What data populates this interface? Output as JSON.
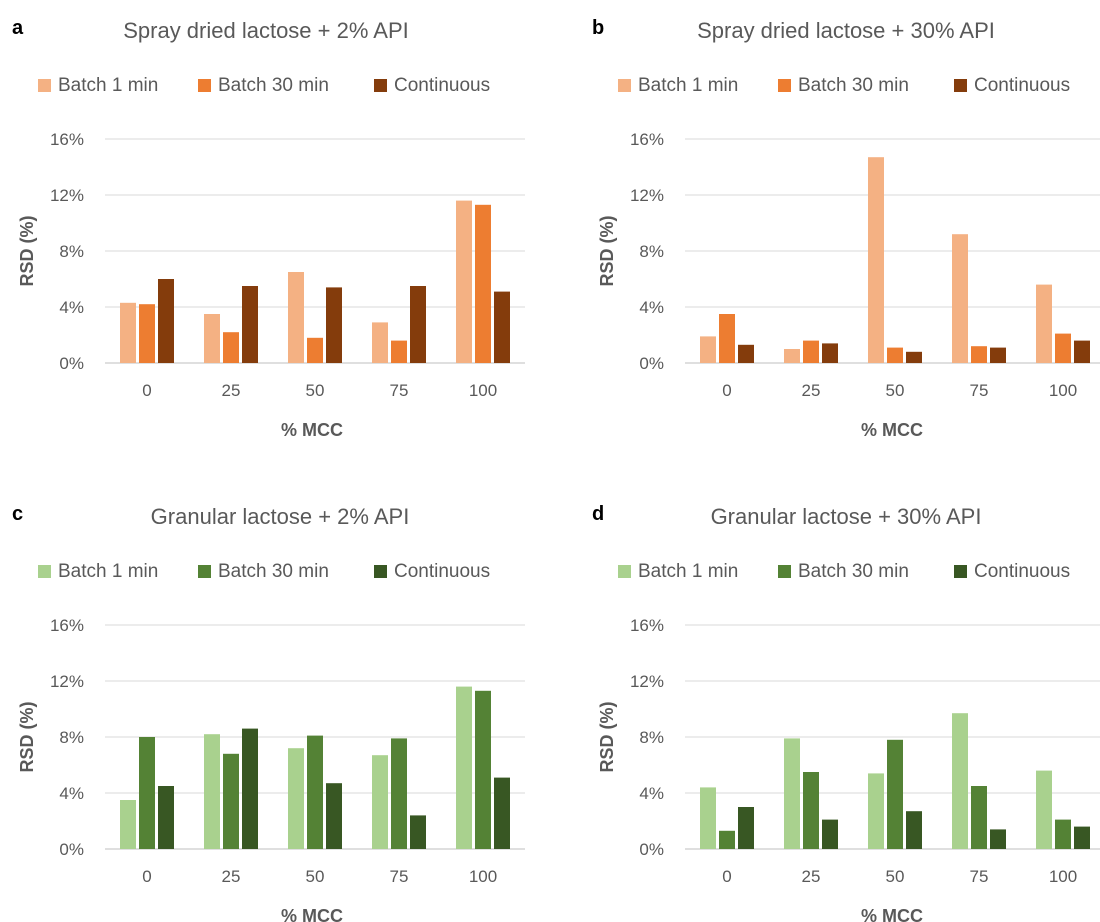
{
  "chart_data": [
    {
      "type": "bar",
      "panel_letter": "a",
      "title": "Spray dried lactose + 2% API",
      "xlabel": "% MCC",
      "ylabel": "RSD (%)",
      "categories": [
        "0",
        "25",
        "50",
        "75",
        "100"
      ],
      "ylim": [
        0,
        16
      ],
      "yticks": [
        "0%",
        "4%",
        "8%",
        "12%",
        "16%"
      ],
      "grid": true,
      "legend_position": "top",
      "series": [
        {
          "name": "Batch 1 min",
          "color": "#f4b183",
          "values": [
            4.3,
            3.5,
            6.5,
            2.9,
            11.6
          ]
        },
        {
          "name": "Batch 30 min",
          "color": "#ed7d31",
          "values": [
            4.2,
            2.2,
            1.8,
            1.6,
            11.3
          ]
        },
        {
          "name": "Continuous",
          "color": "#843c0c",
          "values": [
            6.0,
            5.5,
            5.4,
            5.5,
            5.1
          ]
        }
      ]
    },
    {
      "type": "bar",
      "panel_letter": "b",
      "title": "Spray dried lactose + 30% API",
      "xlabel": "% MCC",
      "ylabel": "RSD (%)",
      "categories": [
        "0",
        "25",
        "50",
        "75",
        "100"
      ],
      "ylim": [
        0,
        16
      ],
      "yticks": [
        "0%",
        "4%",
        "8%",
        "12%",
        "16%"
      ],
      "grid": true,
      "legend_position": "top",
      "series": [
        {
          "name": "Batch 1 min",
          "color": "#f4b183",
          "values": [
            1.9,
            1.0,
            14.7,
            9.2,
            5.6
          ]
        },
        {
          "name": "Batch 30 min",
          "color": "#ed7d31",
          "values": [
            3.5,
            1.6,
            1.1,
            1.2,
            2.1
          ]
        },
        {
          "name": "Continuous",
          "color": "#843c0c",
          "values": [
            1.3,
            1.4,
            0.8,
            1.1,
            1.6
          ]
        }
      ]
    },
    {
      "type": "bar",
      "panel_letter": "c",
      "title": "Granular lactose + 2% API",
      "xlabel": "% MCC",
      "ylabel": "RSD (%)",
      "categories": [
        "0",
        "25",
        "50",
        "75",
        "100"
      ],
      "ylim": [
        0,
        16
      ],
      "yticks": [
        "0%",
        "4%",
        "8%",
        "12%",
        "16%"
      ],
      "grid": true,
      "legend_position": "top",
      "series": [
        {
          "name": "Batch 1 min",
          "color": "#a9d18e",
          "values": [
            3.5,
            8.2,
            7.2,
            6.7,
            11.6
          ]
        },
        {
          "name": "Batch 30 min",
          "color": "#548235",
          "values": [
            8.0,
            6.8,
            8.1,
            7.9,
            11.3
          ]
        },
        {
          "name": "Continuous",
          "color": "#385723",
          "values": [
            4.5,
            8.6,
            4.7,
            2.4,
            5.1
          ]
        }
      ]
    },
    {
      "type": "bar",
      "panel_letter": "d",
      "title": "Granular lactose + 30% API",
      "xlabel": "% MCC",
      "ylabel": "RSD (%)",
      "categories": [
        "0",
        "25",
        "50",
        "75",
        "100"
      ],
      "ylim": [
        0,
        16
      ],
      "yticks": [
        "0%",
        "4%",
        "8%",
        "12%",
        "16%"
      ],
      "grid": true,
      "legend_position": "top",
      "series": [
        {
          "name": "Batch 1 min",
          "color": "#a9d18e",
          "values": [
            4.4,
            7.9,
            5.4,
            9.7,
            5.6
          ]
        },
        {
          "name": "Batch 30 min",
          "color": "#548235",
          "values": [
            1.3,
            5.5,
            7.8,
            4.5,
            2.1
          ]
        },
        {
          "name": "Continuous",
          "color": "#385723",
          "values": [
            3.0,
            2.1,
            2.7,
            1.4,
            1.6
          ]
        }
      ]
    }
  ]
}
